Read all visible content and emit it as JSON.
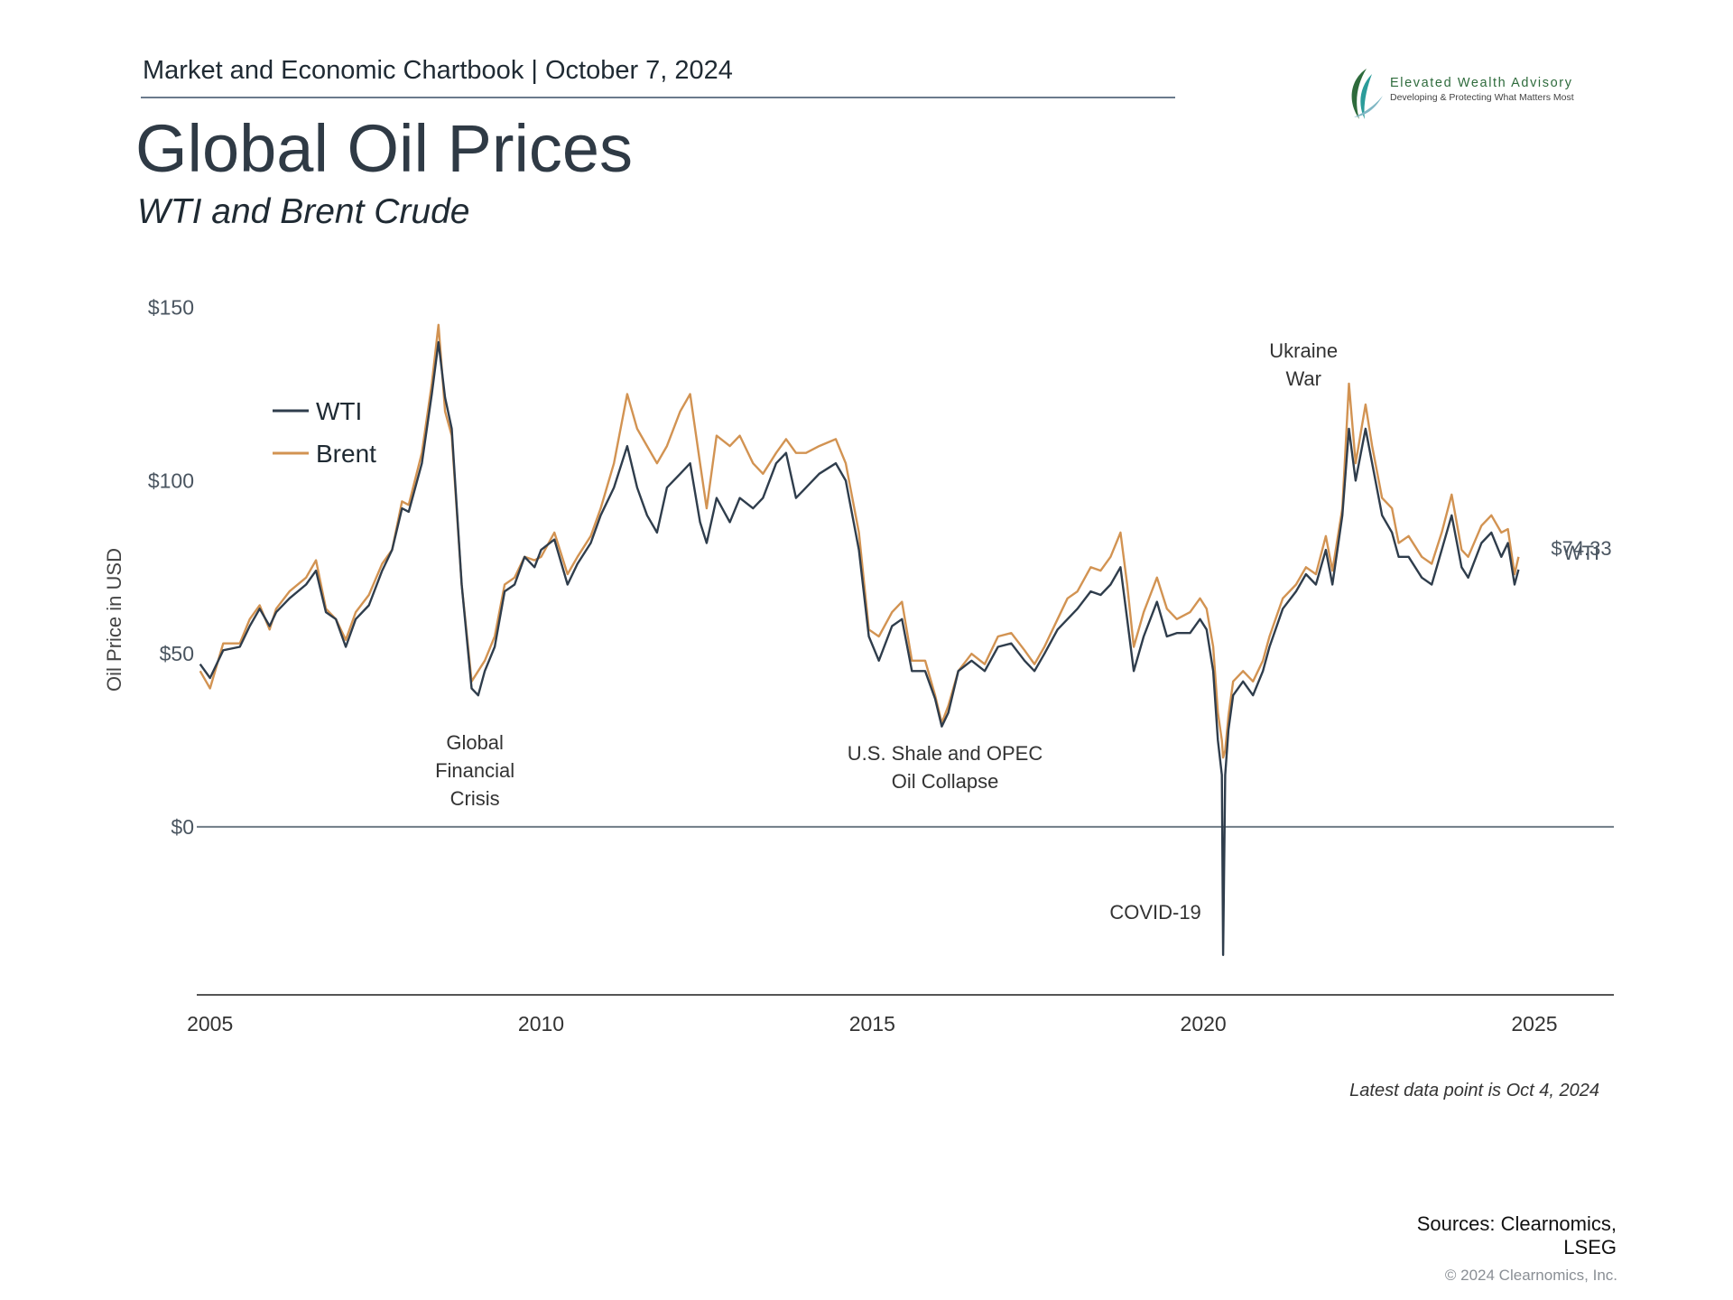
{
  "header": {
    "chartbook_label": "Market and Economic Chartbook | October 7, 2024",
    "title": "Global Oil Prices",
    "subtitle": "WTI and Brent Crude"
  },
  "logo": {
    "name": "Elevated Wealth Advisory",
    "tagline": "Developing & Protecting What Matters Most",
    "color_green": "#2e6b3c",
    "color_teal": "#2b9c9a"
  },
  "footer": {
    "latest_note": "Latest data point is Oct 4, 2024",
    "sources_line1": "Sources: Clearnomics,",
    "sources_line2": "LSEG",
    "copyright": "© 2024 Clearnomics, Inc."
  },
  "chart_data": {
    "type": "line",
    "ylabel": "Oil Price in USD",
    "xlabel": "",
    "xlim": [
      2005,
      2026.8
    ],
    "ylim": [
      -48,
      152
    ],
    "x_ticks": [
      {
        "value": 2005,
        "label": "2005"
      },
      {
        "value": 2010,
        "label": "2010"
      },
      {
        "value": 2015,
        "label": "2015"
      },
      {
        "value": 2020,
        "label": "2020"
      },
      {
        "value": 2025,
        "label": "2025"
      }
    ],
    "y_ticks": [
      {
        "value": 150,
        "label": "$150"
      },
      {
        "value": 100,
        "label": "$100"
      },
      {
        "value": 50,
        "label": "$50"
      },
      {
        "value": 0,
        "label": "$0"
      }
    ],
    "grid": false,
    "legend_position": "top-left",
    "series": [
      {
        "name": "WTI",
        "color": "#2f3d4c",
        "points": [
          [
            2004.85,
            47
          ],
          [
            2005.0,
            43
          ],
          [
            2005.2,
            51
          ],
          [
            2005.45,
            52
          ],
          [
            2005.6,
            58
          ],
          [
            2005.75,
            63
          ],
          [
            2005.9,
            58
          ],
          [
            2006.0,
            62
          ],
          [
            2006.2,
            66
          ],
          [
            2006.45,
            70
          ],
          [
            2006.6,
            74
          ],
          [
            2006.75,
            62
          ],
          [
            2006.9,
            60
          ],
          [
            2007.05,
            52
          ],
          [
            2007.2,
            60
          ],
          [
            2007.4,
            64
          ],
          [
            2007.6,
            74
          ],
          [
            2007.75,
            80
          ],
          [
            2007.9,
            92
          ],
          [
            2008.0,
            91
          ],
          [
            2008.2,
            105
          ],
          [
            2008.35,
            125
          ],
          [
            2008.45,
            140
          ],
          [
            2008.55,
            124
          ],
          [
            2008.65,
            115
          ],
          [
            2008.8,
            70
          ],
          [
            2008.95,
            40
          ],
          [
            2009.05,
            38
          ],
          [
            2009.15,
            45
          ],
          [
            2009.3,
            52
          ],
          [
            2009.45,
            68
          ],
          [
            2009.6,
            70
          ],
          [
            2009.75,
            78
          ],
          [
            2009.9,
            75
          ],
          [
            2010.0,
            80
          ],
          [
            2010.2,
            83
          ],
          [
            2010.4,
            70
          ],
          [
            2010.55,
            76
          ],
          [
            2010.75,
            82
          ],
          [
            2010.9,
            90
          ],
          [
            2011.1,
            98
          ],
          [
            2011.3,
            110
          ],
          [
            2011.45,
            98
          ],
          [
            2011.6,
            90
          ],
          [
            2011.75,
            85
          ],
          [
            2011.9,
            98
          ],
          [
            2012.1,
            102
          ],
          [
            2012.25,
            105
          ],
          [
            2012.4,
            88
          ],
          [
            2012.5,
            82
          ],
          [
            2012.65,
            95
          ],
          [
            2012.85,
            88
          ],
          [
            2013.0,
            95
          ],
          [
            2013.2,
            92
          ],
          [
            2013.35,
            95
          ],
          [
            2013.55,
            105
          ],
          [
            2013.7,
            108
          ],
          [
            2013.85,
            95
          ],
          [
            2014.0,
            98
          ],
          [
            2014.2,
            102
          ],
          [
            2014.45,
            105
          ],
          [
            2014.6,
            100
          ],
          [
            2014.8,
            80
          ],
          [
            2014.95,
            55
          ],
          [
            2015.1,
            48
          ],
          [
            2015.3,
            58
          ],
          [
            2015.45,
            60
          ],
          [
            2015.6,
            45
          ],
          [
            2015.8,
            45
          ],
          [
            2015.95,
            37
          ],
          [
            2016.05,
            29
          ],
          [
            2016.15,
            33
          ],
          [
            2016.3,
            45
          ],
          [
            2016.5,
            48
          ],
          [
            2016.7,
            45
          ],
          [
            2016.9,
            52
          ],
          [
            2017.1,
            53
          ],
          [
            2017.3,
            48
          ],
          [
            2017.45,
            45
          ],
          [
            2017.6,
            50
          ],
          [
            2017.8,
            57
          ],
          [
            2017.95,
            60
          ],
          [
            2018.1,
            63
          ],
          [
            2018.3,
            68
          ],
          [
            2018.45,
            67
          ],
          [
            2018.6,
            70
          ],
          [
            2018.75,
            75
          ],
          [
            2018.85,
            60
          ],
          [
            2018.95,
            45
          ],
          [
            2019.1,
            55
          ],
          [
            2019.3,
            65
          ],
          [
            2019.45,
            55
          ],
          [
            2019.6,
            56
          ],
          [
            2019.8,
            56
          ],
          [
            2019.95,
            60
          ],
          [
            2020.05,
            57
          ],
          [
            2020.15,
            45
          ],
          [
            2020.22,
            25
          ],
          [
            2020.28,
            15
          ],
          [
            2020.3,
            -37
          ],
          [
            2020.33,
            15
          ],
          [
            2020.38,
            28
          ],
          [
            2020.45,
            38
          ],
          [
            2020.6,
            42
          ],
          [
            2020.75,
            38
          ],
          [
            2020.9,
            45
          ],
          [
            2021.0,
            52
          ],
          [
            2021.2,
            63
          ],
          [
            2021.4,
            68
          ],
          [
            2021.55,
            73
          ],
          [
            2021.7,
            70
          ],
          [
            2021.85,
            80
          ],
          [
            2021.95,
            70
          ],
          [
            2022.1,
            90
          ],
          [
            2022.2,
            115
          ],
          [
            2022.3,
            100
          ],
          [
            2022.45,
            115
          ],
          [
            2022.55,
            105
          ],
          [
            2022.7,
            90
          ],
          [
            2022.85,
            85
          ],
          [
            2022.95,
            78
          ],
          [
            2023.1,
            78
          ],
          [
            2023.3,
            72
          ],
          [
            2023.45,
            70
          ],
          [
            2023.6,
            80
          ],
          [
            2023.75,
            90
          ],
          [
            2023.9,
            75
          ],
          [
            2024.0,
            72
          ],
          [
            2024.2,
            82
          ],
          [
            2024.35,
            85
          ],
          [
            2024.5,
            78
          ],
          [
            2024.6,
            82
          ],
          [
            2024.7,
            70
          ],
          [
            2024.76,
            74.33
          ]
        ]
      },
      {
        "name": "Brent",
        "color": "#d29352",
        "points": [
          [
            2004.85,
            45
          ],
          [
            2005.0,
            40
          ],
          [
            2005.2,
            53
          ],
          [
            2005.45,
            53
          ],
          [
            2005.6,
            60
          ],
          [
            2005.75,
            64
          ],
          [
            2005.9,
            57
          ],
          [
            2006.0,
            63
          ],
          [
            2006.2,
            68
          ],
          [
            2006.45,
            72
          ],
          [
            2006.6,
            77
          ],
          [
            2006.75,
            63
          ],
          [
            2006.9,
            60
          ],
          [
            2007.05,
            54
          ],
          [
            2007.2,
            62
          ],
          [
            2007.4,
            67
          ],
          [
            2007.6,
            76
          ],
          [
            2007.75,
            80
          ],
          [
            2007.9,
            94
          ],
          [
            2008.0,
            93
          ],
          [
            2008.2,
            108
          ],
          [
            2008.35,
            128
          ],
          [
            2008.45,
            145
          ],
          [
            2008.55,
            120
          ],
          [
            2008.65,
            113
          ],
          [
            2008.8,
            70
          ],
          [
            2008.95,
            42
          ],
          [
            2009.05,
            45
          ],
          [
            2009.15,
            48
          ],
          [
            2009.3,
            55
          ],
          [
            2009.45,
            70
          ],
          [
            2009.6,
            72
          ],
          [
            2009.75,
            78
          ],
          [
            2009.9,
            77
          ],
          [
            2010.0,
            78
          ],
          [
            2010.2,
            85
          ],
          [
            2010.4,
            73
          ],
          [
            2010.55,
            78
          ],
          [
            2010.75,
            84
          ],
          [
            2010.9,
            92
          ],
          [
            2011.1,
            105
          ],
          [
            2011.3,
            125
          ],
          [
            2011.45,
            115
          ],
          [
            2011.6,
            110
          ],
          [
            2011.75,
            105
          ],
          [
            2011.9,
            110
          ],
          [
            2012.1,
            120
          ],
          [
            2012.25,
            125
          ],
          [
            2012.4,
            105
          ],
          [
            2012.5,
            92
          ],
          [
            2012.65,
            113
          ],
          [
            2012.85,
            110
          ],
          [
            2013.0,
            113
          ],
          [
            2013.2,
            105
          ],
          [
            2013.35,
            102
          ],
          [
            2013.55,
            108
          ],
          [
            2013.7,
            112
          ],
          [
            2013.85,
            108
          ],
          [
            2014.0,
            108
          ],
          [
            2014.2,
            110
          ],
          [
            2014.45,
            112
          ],
          [
            2014.6,
            105
          ],
          [
            2014.8,
            85
          ],
          [
            2014.95,
            57
          ],
          [
            2015.1,
            55
          ],
          [
            2015.3,
            62
          ],
          [
            2015.45,
            65
          ],
          [
            2015.6,
            48
          ],
          [
            2015.8,
            48
          ],
          [
            2015.95,
            38
          ],
          [
            2016.05,
            30
          ],
          [
            2016.15,
            35
          ],
          [
            2016.3,
            45
          ],
          [
            2016.5,
            50
          ],
          [
            2016.7,
            47
          ],
          [
            2016.9,
            55
          ],
          [
            2017.1,
            56
          ],
          [
            2017.3,
            51
          ],
          [
            2017.45,
            47
          ],
          [
            2017.6,
            52
          ],
          [
            2017.8,
            60
          ],
          [
            2017.95,
            66
          ],
          [
            2018.1,
            68
          ],
          [
            2018.3,
            75
          ],
          [
            2018.45,
            74
          ],
          [
            2018.6,
            78
          ],
          [
            2018.75,
            85
          ],
          [
            2018.85,
            70
          ],
          [
            2018.95,
            52
          ],
          [
            2019.1,
            62
          ],
          [
            2019.3,
            72
          ],
          [
            2019.45,
            63
          ],
          [
            2019.6,
            60
          ],
          [
            2019.8,
            62
          ],
          [
            2019.95,
            66
          ],
          [
            2020.05,
            63
          ],
          [
            2020.15,
            52
          ],
          [
            2020.22,
            33
          ],
          [
            2020.28,
            25
          ],
          [
            2020.3,
            20
          ],
          [
            2020.33,
            22
          ],
          [
            2020.38,
            32
          ],
          [
            2020.45,
            42
          ],
          [
            2020.6,
            45
          ],
          [
            2020.75,
            42
          ],
          [
            2020.9,
            48
          ],
          [
            2021.0,
            55
          ],
          [
            2021.2,
            66
          ],
          [
            2021.4,
            70
          ],
          [
            2021.55,
            75
          ],
          [
            2021.7,
            73
          ],
          [
            2021.85,
            84
          ],
          [
            2021.95,
            74
          ],
          [
            2022.1,
            92
          ],
          [
            2022.2,
            128
          ],
          [
            2022.3,
            105
          ],
          [
            2022.45,
            122
          ],
          [
            2022.55,
            110
          ],
          [
            2022.7,
            95
          ],
          [
            2022.85,
            92
          ],
          [
            2022.95,
            82
          ],
          [
            2023.1,
            84
          ],
          [
            2023.3,
            78
          ],
          [
            2023.45,
            76
          ],
          [
            2023.6,
            85
          ],
          [
            2023.75,
            96
          ],
          [
            2023.9,
            80
          ],
          [
            2024.0,
            78
          ],
          [
            2024.2,
            87
          ],
          [
            2024.35,
            90
          ],
          [
            2024.5,
            85
          ],
          [
            2024.6,
            86
          ],
          [
            2024.7,
            73
          ],
          [
            2024.76,
            78
          ]
        ]
      }
    ],
    "annotations": [
      {
        "x": 2009.0,
        "lines": [
          "Global",
          "Financial",
          "Crisis"
        ]
      },
      {
        "x": 2016.1,
        "lines": [
          "U.S. Shale and OPEC",
          "Oil Collapse"
        ]
      },
      {
        "x": 2019.9,
        "lines": [
          "COVID-19"
        ]
      },
      {
        "x": 2022.4,
        "lines": [
          "Ukraine",
          "War"
        ]
      }
    ],
    "end_label": {
      "series": "WTI",
      "label": "WTI",
      "value_label": "$74.33"
    }
  }
}
